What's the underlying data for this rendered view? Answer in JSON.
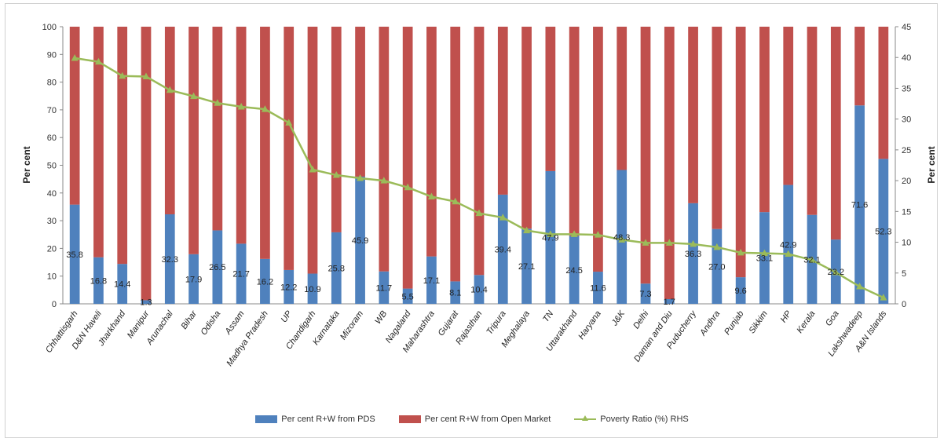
{
  "chart_data": {
    "type": "bar",
    "stacked": true,
    "ylabel": "Per cent",
    "y2label": "Per cent",
    "ylim": [
      0,
      100
    ],
    "y2lim": [
      0,
      45
    ],
    "yticks": [
      0,
      10,
      20,
      30,
      40,
      50,
      60,
      70,
      80,
      90,
      100
    ],
    "y2ticks": [
      0,
      5,
      10,
      15,
      20,
      25,
      30,
      35,
      40,
      45
    ],
    "grid": false,
    "legend_position": "bottom",
    "categories": [
      "Chhattisgarh",
      "D&N Haveli",
      "Jharkhand",
      "Manipur",
      "Arunachal",
      "Bihar",
      "Odisha",
      "Assam",
      "Madhya Pradesh",
      "UP",
      "Chandigarh",
      "Karnataka",
      "Mizoram",
      "WB",
      "Nagaland",
      "Maharashtra",
      "Gujarat",
      "Rajasthan",
      "Tripura",
      "Meghalaya",
      "TN",
      "Uttarakhand",
      "Haryana",
      "J&K",
      "Delhi",
      "Daman and Diu",
      "Puducherry",
      "Andhra",
      "Punjab",
      "Sikkim",
      "HP",
      "Kerala",
      "Goa",
      "Lakshwadeep",
      "A&N Islands"
    ],
    "series": [
      {
        "name": "Per cent R+W from PDS",
        "color": "#4f81bd",
        "values": [
          35.8,
          16.8,
          14.4,
          1.3,
          32.3,
          17.9,
          26.5,
          21.7,
          16.2,
          12.2,
          10.9,
          25.8,
          45.9,
          11.7,
          5.5,
          17.1,
          8.1,
          10.4,
          39.4,
          27.1,
          47.9,
          24.5,
          11.6,
          48.3,
          7.3,
          1.7,
          36.3,
          27.0,
          9.6,
          33.1,
          42.9,
          32.1,
          23.2,
          71.6,
          52.3
        ],
        "labels": [
          "35.8",
          "16.8",
          "14.4",
          "1.3",
          "32.3",
          "17.9",
          "26.5",
          "21.7",
          "16.2",
          "12.2",
          "10.9",
          "25.8",
          "45.9",
          "11.7",
          "5.5",
          "17.1",
          "8.1",
          "10.4",
          "39.4",
          "27.1",
          "47.9",
          "24.5",
          "11.6",
          "48.3",
          "7.3",
          "1.7",
          "36.3",
          "27.0",
          "9.6",
          "33.1",
          "42.9",
          "32.1",
          "23.2",
          "71.6",
          "52.3"
        ]
      },
      {
        "name": "Per cent R+W from Open Market",
        "color": "#c0504d",
        "values": [
          64.2,
          83.2,
          85.6,
          98.7,
          67.7,
          82.1,
          73.5,
          78.3,
          83.8,
          87.8,
          89.1,
          74.2,
          54.1,
          88.3,
          94.5,
          82.9,
          91.9,
          89.6,
          60.6,
          72.9,
          52.1,
          75.5,
          88.4,
          51.7,
          92.7,
          98.3,
          63.7,
          73.0,
          90.4,
          66.9,
          57.1,
          67.9,
          76.8,
          28.4,
          47.7
        ]
      },
      {
        "name": "Poverty Ratio (%) RHS",
        "color": "#9bbb59",
        "type": "line",
        "axis": "right",
        "values": [
          39.9,
          39.3,
          37.0,
          36.9,
          34.7,
          33.7,
          32.6,
          32.0,
          31.6,
          29.4,
          21.8,
          20.9,
          20.4,
          20.0,
          18.9,
          17.4,
          16.6,
          14.7,
          14.0,
          11.9,
          11.3,
          11.3,
          11.2,
          10.4,
          9.9,
          9.9,
          9.7,
          9.2,
          8.3,
          8.2,
          8.1,
          7.1,
          5.1,
          2.8,
          1.0
        ]
      }
    ]
  }
}
